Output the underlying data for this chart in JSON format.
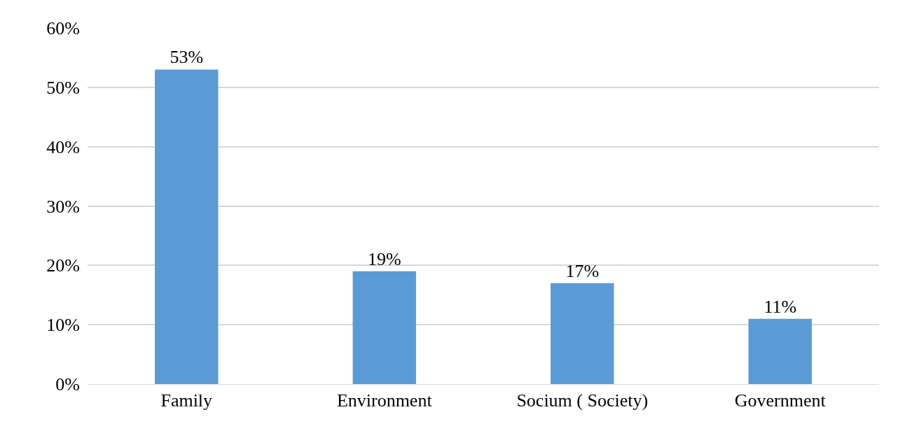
{
  "chart_data": {
    "type": "bar",
    "categories": [
      "Family",
      "Environment",
      "Socium ( Society)",
      "Government"
    ],
    "values": [
      53,
      19,
      17,
      11
    ],
    "value_labels": [
      "53%",
      "19%",
      "17%",
      "11%"
    ],
    "color": "#5b9bd5",
    "ylim": [
      0,
      60
    ],
    "yticks": [
      {
        "value": 0,
        "label": "0%"
      },
      {
        "value": 10,
        "label": "10%"
      },
      {
        "value": 20,
        "label": "20%"
      },
      {
        "value": 30,
        "label": "30%"
      },
      {
        "value": 40,
        "label": "40%"
      },
      {
        "value": 50,
        "label": "50%"
      },
      {
        "value": 60,
        "label": "60%"
      }
    ],
    "grid": "y"
  }
}
